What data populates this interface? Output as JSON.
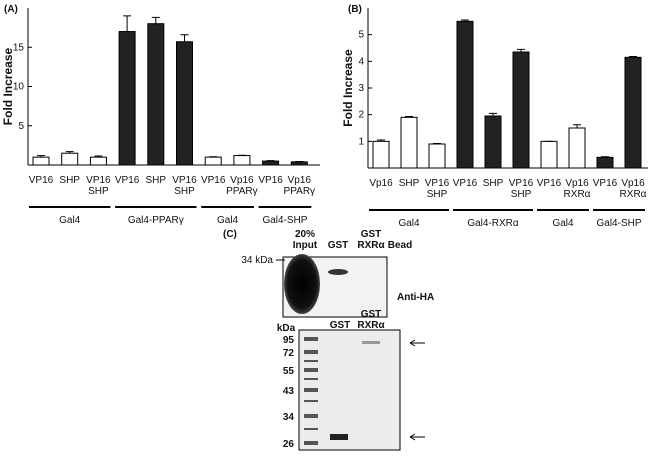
{
  "chart_data": [
    {
      "type": "bar",
      "panel": "(A)",
      "ylabel": "Fold Increase",
      "ylim": [
        0,
        20
      ],
      "yticks": [
        5,
        10,
        15
      ],
      "categories": [
        [
          "VP16"
        ],
        [
          "SHP"
        ],
        [
          "VP16",
          "SHP"
        ],
        [
          "VP16"
        ],
        [
          "SHP"
        ],
        [
          "VP16",
          "SHP"
        ],
        [
          "VP16"
        ],
        [
          "Vp16",
          "PPARγ"
        ],
        [
          "VP16"
        ],
        [
          "Vp16",
          "PPARγ"
        ]
      ],
      "values": [
        1.0,
        1.5,
        1.0,
        17.0,
        18.0,
        15.7,
        1.0,
        1.2,
        0.5,
        0.4
      ],
      "errors": [
        0.2,
        0.2,
        0.15,
        2.0,
        0.8,
        0.9,
        0.05,
        0.05,
        0.05,
        0.05
      ],
      "colors": [
        "#ffffff",
        "#ffffff",
        "#ffffff",
        "#222222",
        "#222222",
        "#222222",
        "#ffffff",
        "#ffffff",
        "#222222",
        "#222222"
      ],
      "groups": [
        "Gal4",
        "Gal4-PPARγ",
        "Gal4",
        "Gal4-SHP"
      ]
    },
    {
      "type": "bar",
      "panel": "(B)",
      "ylabel": "Fold Increase",
      "ylim": [
        0,
        6
      ],
      "yticks": [
        1,
        2,
        3,
        4,
        5
      ],
      "categories": [
        [
          "Vp16"
        ],
        [
          "SHP"
        ],
        [
          "VP16",
          "SHP"
        ],
        [
          "VP16"
        ],
        [
          "SHP"
        ],
        [
          "VP16",
          "SHP"
        ],
        [
          "VP16"
        ],
        [
          "Vp16",
          "RXRα"
        ],
        [
          "VP16"
        ],
        [
          "Vp16",
          "RXRα"
        ]
      ],
      "values": [
        1.0,
        1.9,
        0.9,
        5.5,
        1.95,
        4.35,
        1.0,
        1.5,
        0.4,
        4.15
      ],
      "errors": [
        0.05,
        0.03,
        0.02,
        0.05,
        0.1,
        0.1,
        0.0,
        0.12,
        0.02,
        0.03
      ],
      "colors": [
        "#ffffff",
        "#ffffff",
        "#ffffff",
        "#222222",
        "#222222",
        "#222222",
        "#ffffff",
        "#ffffff",
        "#222222",
        "#222222"
      ],
      "groups": [
        "Gal4",
        "Gal4-RXRα",
        "Gal4",
        "Gal4-SHP"
      ]
    }
  ],
  "blot": {
    "panel": "(C)",
    "top": {
      "lanes": [
        [
          "20%",
          "Input"
        ],
        [
          "GST"
        ],
        [
          "GST",
          "RXRα"
        ],
        [
          "Bead"
        ]
      ],
      "marker": "34 kDa",
      "antibody": "Anti-HA"
    },
    "bottom": {
      "unit": "kDa",
      "lanes": [
        [
          "GST"
        ],
        [
          "GST",
          "RXRα"
        ]
      ],
      "markers": [
        "95",
        "72",
        "55",
        "43",
        "34",
        "26"
      ]
    }
  }
}
